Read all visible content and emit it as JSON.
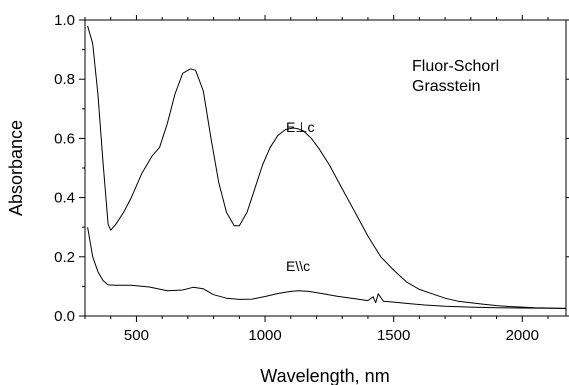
{
  "chart_data": {
    "type": "line",
    "xlabel": "Wavelength, nm",
    "ylabel": "Absorbance",
    "xlim": [
      300,
      2170
    ],
    "ylim": [
      0,
      1.0
    ],
    "x_ticks": [
      500,
      1000,
      1500,
      2000
    ],
    "x_tick_labels": [
      "500",
      "1000",
      "1500",
      "2000"
    ],
    "y_ticks": [
      0,
      0.2,
      0.4,
      0.6,
      0.8,
      1.0
    ],
    "y_tick_labels": [
      "0.0",
      "0.2",
      "0.4",
      "0.6",
      "0.8",
      "1.0"
    ],
    "grid": false,
    "annotations": [
      "Fluor-Schorl",
      "Grasstein"
    ],
    "series": [
      {
        "name": "E⊥c",
        "x": [
          310,
          330,
          350,
          370,
          390,
          400,
          420,
          450,
          480,
          520,
          560,
          590,
          620,
          650,
          680,
          710,
          730,
          760,
          790,
          820,
          850,
          880,
          900,
          930,
          960,
          990,
          1020,
          1050,
          1080,
          1110,
          1130,
          1150,
          1180,
          1210,
          1250,
          1300,
          1350,
          1400,
          1450,
          1500,
          1550,
          1600,
          1650,
          1700,
          1750,
          1800,
          1850,
          1900,
          1950,
          2000,
          2050,
          2100,
          2170
        ],
        "y": [
          0.98,
          0.92,
          0.75,
          0.52,
          0.31,
          0.29,
          0.31,
          0.35,
          0.4,
          0.48,
          0.54,
          0.57,
          0.65,
          0.75,
          0.82,
          0.835,
          0.83,
          0.76,
          0.6,
          0.45,
          0.35,
          0.305,
          0.305,
          0.35,
          0.43,
          0.51,
          0.57,
          0.61,
          0.63,
          0.635,
          0.632,
          0.625,
          0.6,
          0.565,
          0.51,
          0.43,
          0.35,
          0.27,
          0.2,
          0.155,
          0.115,
          0.09,
          0.075,
          0.06,
          0.05,
          0.045,
          0.04,
          0.035,
          0.032,
          0.03,
          0.028,
          0.027,
          0.025
        ]
      },
      {
        "name": "E\\\\c",
        "x": [
          310,
          330,
          350,
          370,
          390,
          420,
          480,
          550,
          620,
          680,
          720,
          760,
          800,
          850,
          900,
          950,
          1000,
          1050,
          1100,
          1130,
          1170,
          1220,
          1280,
          1350,
          1400,
          1420,
          1430,
          1440,
          1460,
          1500,
          1560,
          1620,
          1700,
          1800,
          1900,
          2000,
          2100,
          2170
        ],
        "y": [
          0.3,
          0.2,
          0.15,
          0.12,
          0.105,
          0.104,
          0.104,
          0.098,
          0.085,
          0.088,
          0.097,
          0.092,
          0.072,
          0.06,
          0.056,
          0.057,
          0.066,
          0.076,
          0.083,
          0.085,
          0.083,
          0.076,
          0.067,
          0.058,
          0.052,
          0.065,
          0.045,
          0.075,
          0.05,
          0.047,
          0.042,
          0.037,
          0.033,
          0.03,
          0.028,
          0.027,
          0.026,
          0.026
        ]
      }
    ]
  }
}
